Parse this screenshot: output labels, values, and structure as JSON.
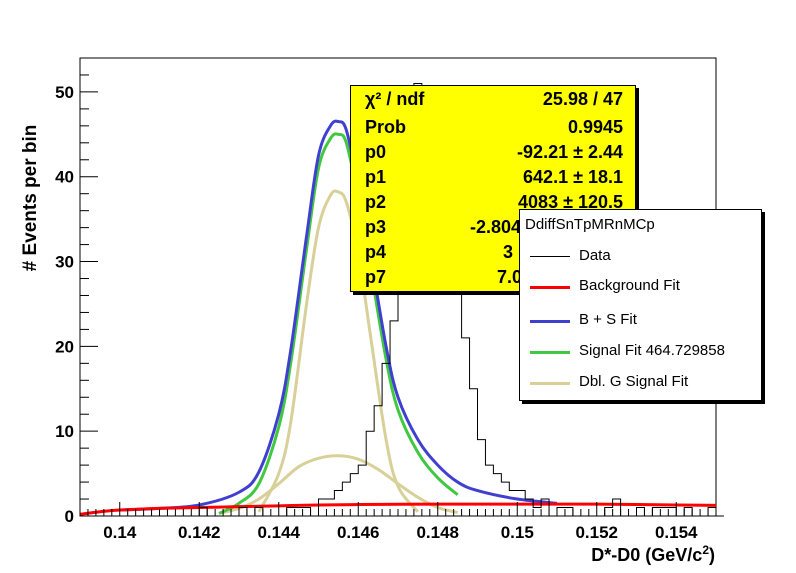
{
  "chart_data": {
    "type": "line",
    "title": "",
    "xlabel": "D*-D0 (GeV/c",
    "xlabel_sup": "2",
    "xlabel_end": ")",
    "ylabel": "# Events per bin",
    "xlim": [
      0.139,
      0.155
    ],
    "ylim": [
      0,
      54
    ],
    "x_ticks": [
      0.14,
      0.142,
      0.144,
      0.146,
      0.148,
      0.15,
      0.152,
      0.154
    ],
    "x_tick_labels": [
      "0.14",
      "0.142",
      "0.144",
      "0.146",
      "0.148",
      "0.15",
      "0.152",
      "0.154"
    ],
    "y_ticks": [
      0,
      10,
      20,
      30,
      40,
      50
    ],
    "y_tick_labels": [
      "0",
      "10",
      "20",
      "30",
      "40",
      "50"
    ],
    "grid": false,
    "histogram": {
      "name": "Data",
      "color": "#000000",
      "x_start": 0.139,
      "bin_width": 0.0002,
      "counts": [
        0,
        0,
        0,
        0,
        0,
        0,
        0,
        0,
        0,
        0,
        0,
        0,
        0,
        0,
        0,
        1,
        0,
        0,
        0,
        0,
        1,
        0,
        1,
        0,
        0,
        0,
        1,
        1,
        1,
        0,
        2,
        2,
        3,
        4,
        5,
        6,
        10,
        13,
        18,
        23,
        31,
        40,
        51,
        49,
        45,
        38,
        36,
        28,
        21,
        15,
        9,
        6,
        5,
        4,
        3,
        3,
        2,
        1,
        2,
        0,
        1,
        1,
        0,
        0,
        0,
        0,
        1,
        2,
        0,
        0,
        1,
        0,
        1,
        1,
        1,
        0,
        1,
        0,
        0,
        1,
        0
      ]
    },
    "series": [
      {
        "name": "Background Fit",
        "color": "#ff0000",
        "x": [
          0.139,
          0.1395,
          0.14,
          0.141,
          0.142,
          0.143,
          0.144,
          0.145,
          0.146,
          0.147,
          0.148,
          0.149,
          0.15,
          0.151,
          0.152,
          0.153,
          0.154,
          0.155
        ],
        "y": [
          0.2,
          0.5,
          0.7,
          0.9,
          1.0,
          1.1,
          1.2,
          1.3,
          1.35,
          1.38,
          1.4,
          1.4,
          1.4,
          1.4,
          1.4,
          1.35,
          1.3,
          1.25
        ]
      },
      {
        "name": "B + S Fit",
        "color": "#4040d0",
        "x": [
          0.14,
          0.141,
          0.142,
          0.143,
          0.1435,
          0.144,
          0.1443,
          0.1447,
          0.145,
          0.1453,
          0.1455,
          0.1457,
          0.146,
          0.1463,
          0.1467,
          0.147,
          0.1475,
          0.148,
          0.1485,
          0.149,
          0.15,
          0.151
        ],
        "y": [
          0.7,
          0.9,
          1.3,
          2.8,
          5.2,
          12.0,
          19.5,
          33.0,
          42.5,
          46.0,
          46.5,
          45.5,
          39.0,
          31.0,
          20.0,
          14.0,
          9.0,
          6.0,
          4.0,
          3.0,
          2.0,
          1.5
        ]
      },
      {
        "name": "Signal Fit 464.729858",
        "color": "#40c840",
        "x": [
          0.1425,
          0.143,
          0.1435,
          0.144,
          0.1443,
          0.1447,
          0.145,
          0.1453,
          0.1455,
          0.1457,
          0.146,
          0.1463,
          0.1467,
          0.147,
          0.1475,
          0.148,
          0.1485
        ],
        "y": [
          0.3,
          1.5,
          3.8,
          10.5,
          18.0,
          31.5,
          41.0,
          44.5,
          45.0,
          44.0,
          37.5,
          29.5,
          18.5,
          12.5,
          7.5,
          4.5,
          2.5
        ]
      },
      {
        "name": "Dbl. G Signal Fit",
        "color": "#d8d098",
        "x": [
          0.1435,
          0.144,
          0.1443,
          0.1447,
          0.145,
          0.1453,
          0.1455,
          0.1457,
          0.146,
          0.1463,
          0.1467,
          0.147,
          0.1475
        ],
        "y": [
          0.5,
          5.0,
          11.0,
          25.0,
          34.0,
          37.8,
          38.2,
          37.0,
          31.0,
          21.5,
          9.0,
          3.5,
          0.5
        ]
      },
      {
        "name": "",
        "color": "#d8d098",
        "x": [
          0.1425,
          0.143,
          0.1435,
          0.144,
          0.1445,
          0.145,
          0.1455,
          0.146,
          0.1465,
          0.147,
          0.1475,
          0.148,
          0.1485
        ],
        "y": [
          0.3,
          0.9,
          2.0,
          3.8,
          5.8,
          6.8,
          7.1,
          6.7,
          5.5,
          3.8,
          2.2,
          1.0,
          0.4
        ]
      }
    ],
    "stats_box": {
      "rows": [
        {
          "label": "χ² / ndf",
          "value": "25.98 / 47"
        },
        {
          "label": "Prob",
          "value": "0.9945"
        },
        {
          "label": "p0",
          "value": "-92.21 ± 2.44"
        },
        {
          "label": "p1",
          "value": "642.1 ± 18.1"
        },
        {
          "label": "p2",
          "value": "4083 ± 120.5"
        },
        {
          "label": "p3",
          "value": "-2.804"
        },
        {
          "label": "p4",
          "value": "3"
        },
        {
          "label": "p7",
          "value": "7.0"
        }
      ]
    },
    "legend": {
      "header": "DdiffSnTpMRnMCp",
      "placement": "right",
      "entries": [
        {
          "label": "Data",
          "color": "#000000"
        },
        {
          "label": "Background Fit",
          "color": "#ff0000"
        },
        {
          "label": "B + S Fit",
          "color": "#4040d0"
        },
        {
          "label": "Signal Fit 464.729858",
          "color": "#40c840"
        },
        {
          "label": "Dbl. G Signal Fit",
          "color": "#d8d098"
        }
      ]
    }
  }
}
